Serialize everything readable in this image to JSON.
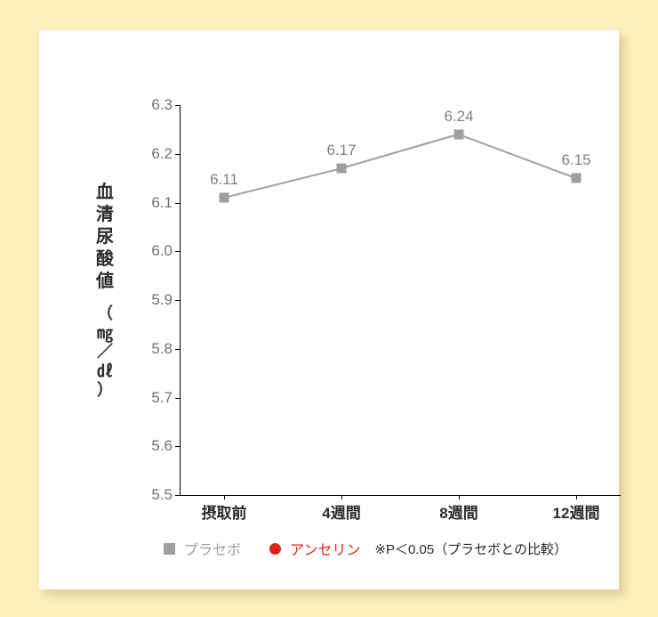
{
  "layout": {
    "outer_bg_color": "#fdf0bd",
    "panel_bg_color": "#ffffff",
    "text_color": "#2b2b2b",
    "tick_color": "#707070"
  },
  "yaxis": {
    "title": "血清尿酸値",
    "unit_open": "（",
    "unit_line1": "㎎",
    "unit_line2": "／",
    "unit_line3": "㎗",
    "unit_close": "）",
    "ymin": 5.5,
    "ymax": 6.3,
    "ticks": [
      5.5,
      5.6,
      5.7,
      5.8,
      5.9,
      6.0,
      6.1,
      6.2,
      6.3
    ],
    "tick_labels": [
      "5.5",
      "5.6",
      "5.7",
      "5.8",
      "5.9",
      "6.0",
      "6.1",
      "6.2",
      "6.3"
    ]
  },
  "xaxis": {
    "categories": [
      "摂取前",
      "4週間",
      "8週間",
      "12週間"
    ]
  },
  "series": {
    "placebo": {
      "label": "プラセボ",
      "color": "#9f9f9f",
      "marker": "square",
      "values": [
        6.11,
        6.17,
        6.24,
        6.15
      ],
      "value_labels": [
        "6.11",
        "6.17",
        "6.24",
        "6.15"
      ],
      "line_width": 2,
      "label_color": "#808080"
    },
    "anserine": {
      "label": "アンセリン",
      "color": "#d9261c",
      "marker": "circle",
      "values": [],
      "value_labels": []
    }
  },
  "legend": {
    "note": "※P＜0.05（プラセボとの比較）",
    "placebo_text_color": "#9f9f9f",
    "anserine_text_color": "#d9261c"
  }
}
